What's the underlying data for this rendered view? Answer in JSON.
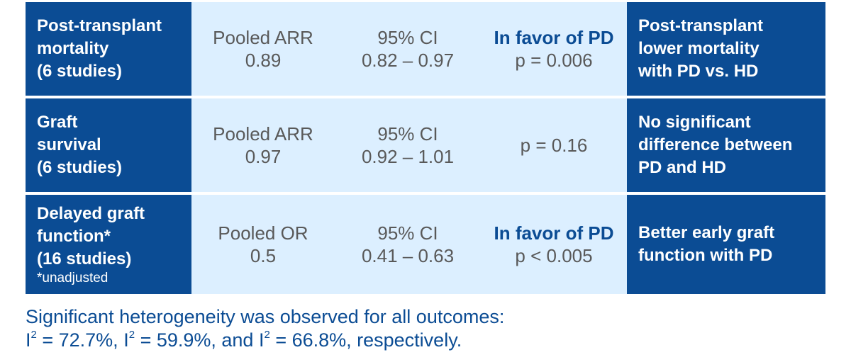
{
  "rows": [
    {
      "outcome": [
        "Post-transplant",
        "mortality",
        "(6 studies)"
      ],
      "note": "",
      "measure": [
        "Pooled ARR",
        "0.89"
      ],
      "ci": [
        "95% CI",
        "0.82 – 0.97"
      ],
      "favor": "In favor of PD",
      "p": "p = 0.006",
      "conclusion": [
        "Post-transplant",
        "lower mortality",
        "with PD vs. HD"
      ]
    },
    {
      "outcome": [
        "Graft",
        "survival",
        "(6 studies)"
      ],
      "note": "",
      "measure": [
        "Pooled ARR",
        "0.97"
      ],
      "ci": [
        "95% CI",
        "0.92 – 1.01"
      ],
      "favor": "",
      "p": "p = 0.16",
      "conclusion": [
        "No significant",
        "difference between",
        "PD and HD"
      ]
    },
    {
      "outcome": [
        "Delayed graft",
        "function*",
        "(16 studies)"
      ],
      "note": "*unadjusted",
      "measure": [
        "Pooled OR",
        "0.5"
      ],
      "ci": [
        "95% CI",
        "0.41 – 0.63"
      ],
      "favor": "In favor of PD",
      "p": "p < 0.005",
      "conclusion": [
        "Better early graft",
        "function with PD"
      ]
    }
  ],
  "footer": {
    "line1": "Significant heterogeneity was observed for all outcomes:",
    "i_symbol": "I",
    "sup": "2",
    "val1": " = 72.7%, ",
    "val2": " = 59.9%, and ",
    "val3": " = 66.8%, respectively."
  },
  "colors": {
    "dark": "#0b4c94",
    "light": "#dcefff",
    "text": "#595959"
  }
}
